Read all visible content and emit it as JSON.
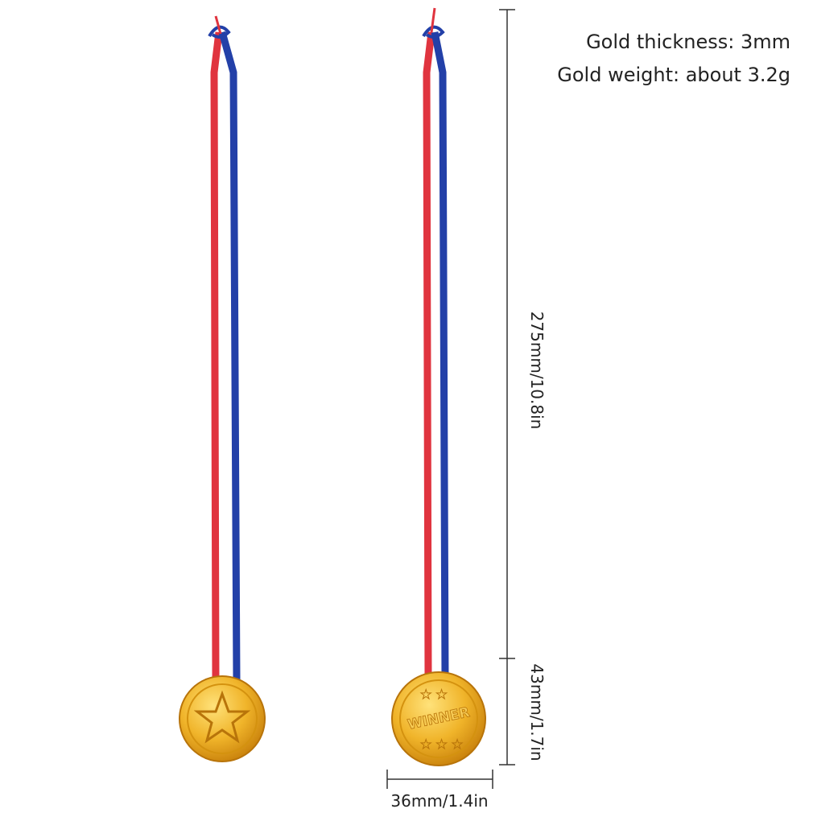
{
  "specs": [
    "Gold thickness: 3mm",
    "Gold weight: about 3.2g"
  ],
  "dimensions": {
    "length": "275mm/10.8in",
    "medal_height": "43mm/1.7in",
    "medal_width": "36mm/1.4in"
  },
  "medal_text": "WINNER"
}
